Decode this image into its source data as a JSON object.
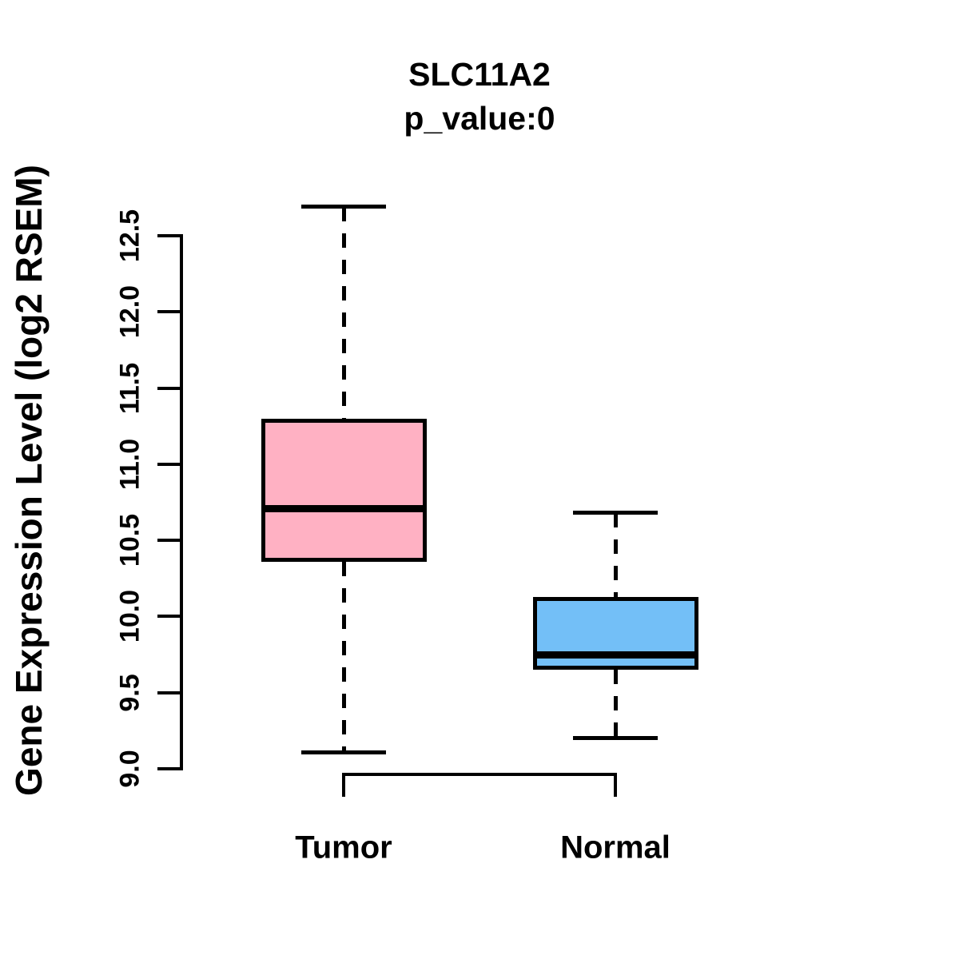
{
  "title": {
    "line1": "SLC11A2",
    "line2": "p_value:0"
  },
  "y_axis": {
    "label": "Gene Expression Level (log2 RSEM)",
    "tick_labels": [
      "9.0",
      "9.5",
      "10.0",
      "10.5",
      "11.0",
      "11.5",
      "12.0",
      "12.5"
    ],
    "tick_values": [
      9.0,
      9.5,
      10.0,
      10.5,
      11.0,
      11.5,
      12.0,
      12.5
    ]
  },
  "x_axis": {
    "categories": [
      "Tumor",
      "Normal"
    ]
  },
  "colors": {
    "tumor_fill": "#FFB1C3",
    "normal_fill": "#73BFF7",
    "line": "#000000",
    "background": "#FFFFFF"
  },
  "chart_data": {
    "type": "boxplot",
    "title": "SLC11A2",
    "subtitle": "p_value:0",
    "xlabel": "",
    "ylabel": "Gene Expression Level (log2 RSEM)",
    "categories": [
      "Tumor",
      "Normal"
    ],
    "ylim": [
      9.0,
      12.5
    ],
    "yticks": [
      9.0,
      9.5,
      10.0,
      10.5,
      11.0,
      11.5,
      12.0,
      12.5
    ],
    "grid": false,
    "legend": "none",
    "whisker_style": "dashed",
    "series": [
      {
        "name": "Tumor",
        "min": 9.11,
        "q1": 10.36,
        "median": 10.71,
        "q3": 11.3,
        "max": 12.69,
        "fill_color": "#FFB1C3"
      },
      {
        "name": "Normal",
        "min": 9.2,
        "q1": 9.65,
        "median": 9.75,
        "q3": 10.13,
        "max": 10.68,
        "fill_color": "#73BFF7"
      }
    ]
  }
}
